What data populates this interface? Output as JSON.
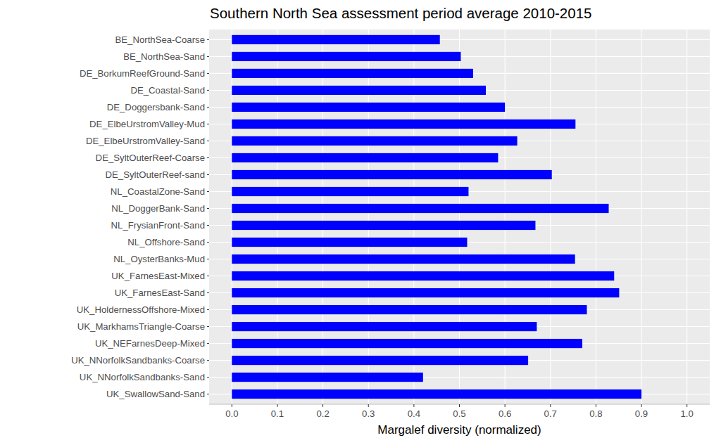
{
  "chart_data": {
    "type": "bar",
    "orientation": "horizontal",
    "title": "Southern North Sea assessment period average 2010-2015",
    "x_label": "Margalef diversity (normalized)",
    "categories": [
      "BE_NorthSea-Coarse",
      "BE_NorthSea-Sand",
      "DE_BorkumReefGround-Sand",
      "DE_Coastal-Sand",
      "DE_Doggersbank-Sand",
      "DE_ElbeUrstromValley-Mud",
      "DE_ElbeUrstromValley-Sand",
      "DE_SyltOuterReef-Coarse",
      "DE_SyltOuterReef-sand",
      "NL_CoastalZone-Sand",
      "NL_DoggerBank-Sand",
      "NL_FrysianFront-Sand",
      "NL_Offshore-Sand",
      "NL_OysterBanks-Mud",
      "UK_FarnesEast-Mixed",
      "UK_FarnesEast-Sand",
      "UK_HoldernessOffshore-Mixed",
      "UK_MarkhamsTriangle-Coarse",
      "UK_NEFarnesDeep-Mixed",
      "UK_NNorfolkSandbanks-Coarse",
      "UK_NNorfolkSandbanks-Sand",
      "UK_SwallowSand-Sand"
    ],
    "values": [
      0.457,
      0.503,
      0.53,
      0.558,
      0.6,
      0.755,
      0.627,
      0.585,
      0.703,
      0.52,
      0.828,
      0.667,
      0.517,
      0.754,
      0.84,
      0.851,
      0.78,
      0.67,
      0.77,
      0.651,
      0.42,
      0.9
    ],
    "color": "#0000ff",
    "xlim": [
      -0.05,
      1.05
    ],
    "xticks": [
      {
        "value": 0,
        "label": "0.0"
      },
      0.1,
      0.2,
      0.3,
      0.4,
      0.5,
      0.6,
      0.7,
      0.8,
      0.9,
      {
        "value": 1,
        "label": "1.0"
      }
    ],
    "grid": true
  }
}
